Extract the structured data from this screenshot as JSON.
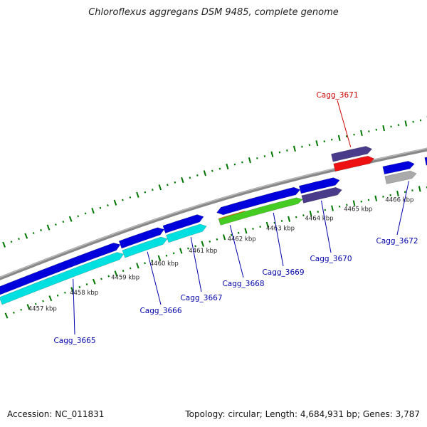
{
  "title": "Chloroflexus aggregans DSM 9485, complete genome",
  "footer": {
    "accession": "Accession: NC_011831",
    "summary": "Topology: circular; Length: 4,684,931 bp; Genes: 3,787"
  },
  "colors": {
    "cds": "#0000dd",
    "cds_light": "#00e0e0",
    "highlight": "#ee1111",
    "dark_purple": "#4a3a8a",
    "grey": "#aaaaaa",
    "green": "#44cc22",
    "orange": "#ff8800",
    "tick": "#007700",
    "backbone": "#888888",
    "label_blue": "#0000aa",
    "label_red": "#cc0000"
  },
  "scale": {
    "ticks": [
      {
        "label": "4457 kbp"
      },
      {
        "label": "4458 kbp"
      },
      {
        "label": "4459 kbp"
      },
      {
        "label": "4460 kbp"
      },
      {
        "label": "4461 kbp"
      },
      {
        "label": "4462 kbp"
      },
      {
        "label": "4463 kbp"
      },
      {
        "label": "4464 kbp"
      },
      {
        "label": "4465 kbp"
      },
      {
        "label": "4466 kbp"
      }
    ]
  },
  "gene_labels": [
    {
      "name": "Cagg_3665",
      "color": "blue"
    },
    {
      "name": "Cagg_3666",
      "color": "blue"
    },
    {
      "name": "Cagg_3667",
      "color": "blue"
    },
    {
      "name": "Cagg_3668",
      "color": "blue"
    },
    {
      "name": "Cagg_3669",
      "color": "blue"
    },
    {
      "name": "Cagg_3670",
      "color": "blue"
    },
    {
      "name": "Cagg_3671",
      "color": "red"
    },
    {
      "name": "Cagg_3672",
      "color": "blue"
    }
  ]
}
